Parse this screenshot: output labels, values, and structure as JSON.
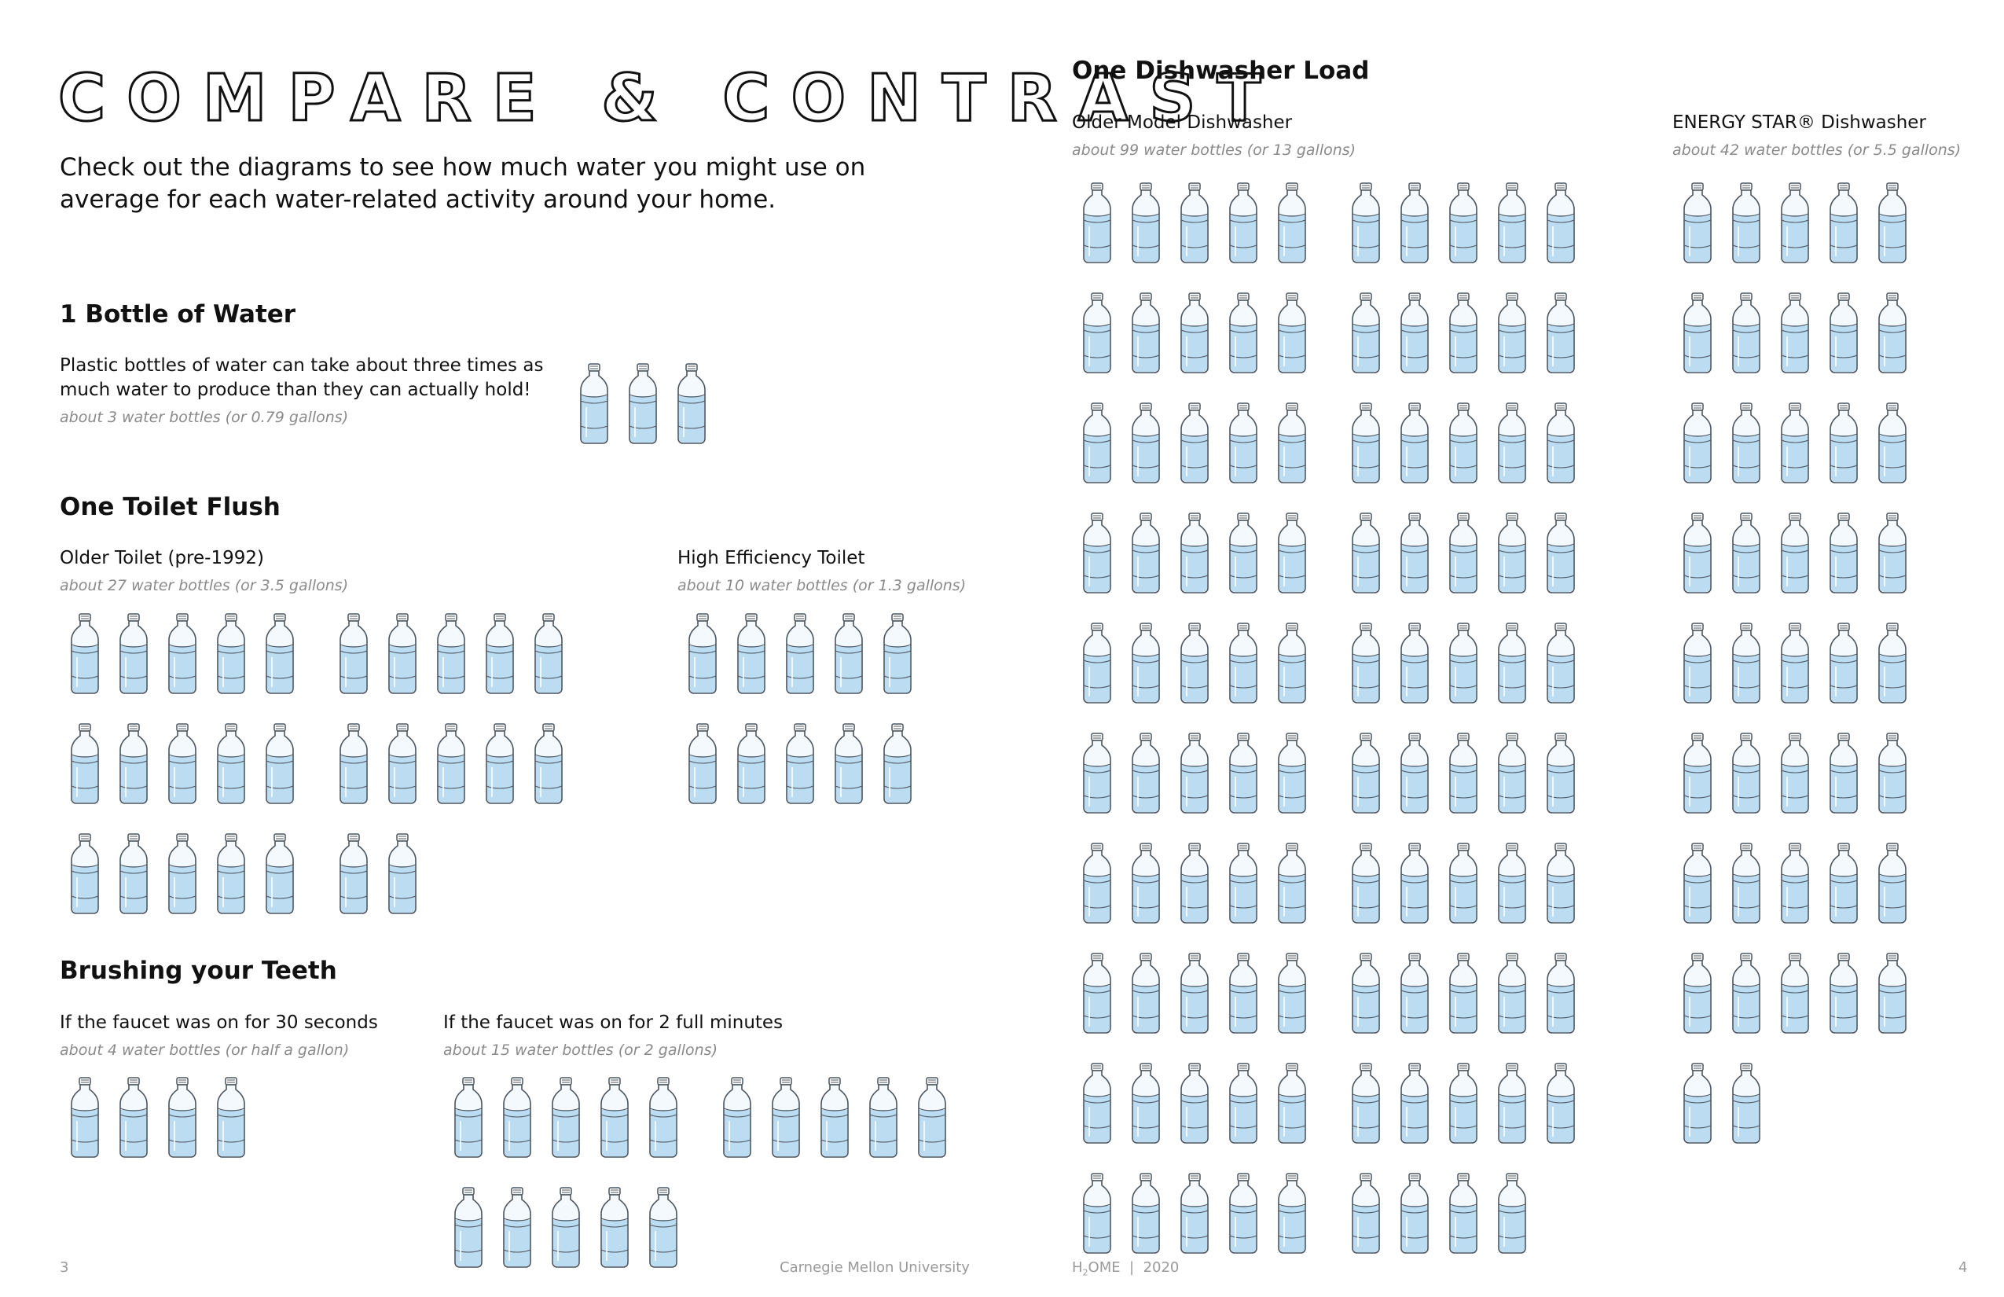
{
  "page_title": "COMPARE & CONTRAST",
  "intro": "Check out the diagrams to see how much water you might use on average for each water-related activity around your home.",
  "bottle_of_water": {
    "heading": "1 Bottle of Water",
    "description": "Plastic bottles of water can take about three times as much water to produce than they can actually hold!",
    "note": "about 3 water bottles (or 0.79 gallons)",
    "count": 3
  },
  "toilet_flush": {
    "heading": "One Toilet Flush",
    "older": {
      "label": "Older Toilet (pre-1992)",
      "note": "about 27 water bottles (or 3.5 gallons)",
      "count": 27
    },
    "high_efficiency": {
      "label": "High Efficiency Toilet",
      "note": "about 10 water bottles (or 1.3 gallons)",
      "count": 10
    }
  },
  "brushing_teeth": {
    "heading": "Brushing your Teeth",
    "thirty_seconds": {
      "label": "If the faucet was on for 30 seconds",
      "note": "about 4 water bottles (or half a gallon)",
      "count": 4
    },
    "two_minutes": {
      "label": "If the faucet was on for 2 full minutes",
      "note": "about 15 water bottles (or 2 gallons)",
      "count": 15
    }
  },
  "dishwasher": {
    "heading": "One Dishwasher Load",
    "older": {
      "label": "Older Model Dishwasher",
      "note": "about 99 water bottles (or 13 gallons)",
      "count": 99
    },
    "energy_star": {
      "label": "ENERGY STAR® Dishwasher",
      "note": "about 42 water bottles (or 5.5 gallons)",
      "count": 42
    }
  },
  "footer": {
    "left_page_number": "3",
    "university": "Carnegie Mellon University",
    "project_prefix": "H",
    "project_subscript": "2",
    "project_suffix": "OME  |  2020",
    "right_page_number": "4"
  },
  "colors": {
    "water": "#bcdcf2",
    "bottle_outline": "#4a5560",
    "note_text": "#8a8a8a"
  },
  "icon": "water-bottle-icon"
}
